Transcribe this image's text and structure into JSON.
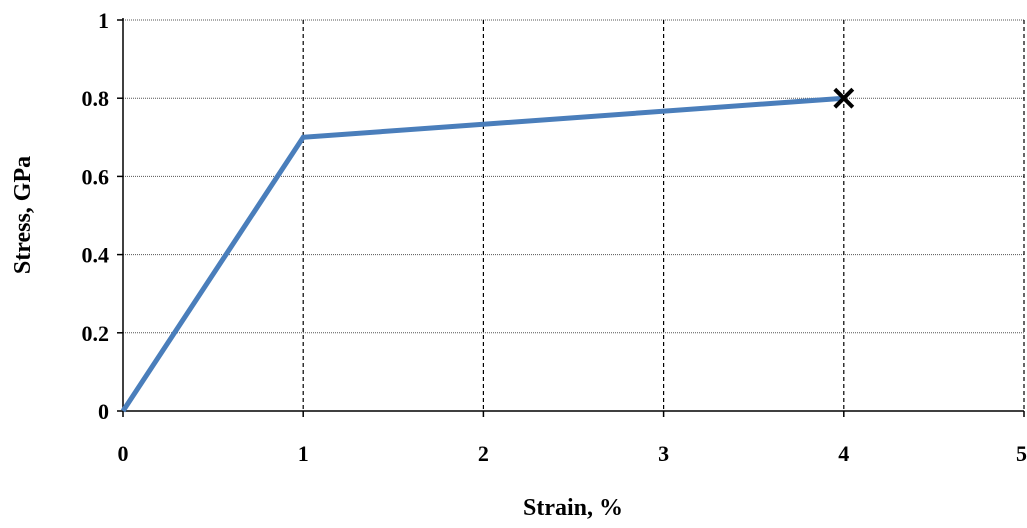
{
  "chart_data": {
    "type": "line",
    "title": "",
    "xlabel": "Strain, %",
    "ylabel": "Stress, GPa",
    "xlim": [
      0,
      5
    ],
    "ylim": [
      0,
      1
    ],
    "xticks": [
      "0",
      "1",
      "2",
      "3",
      "4",
      "5"
    ],
    "yticks": [
      "0",
      "0.2",
      "0.4",
      "0.6",
      "0.8",
      "1"
    ],
    "grid": {
      "x": "dashed",
      "y": "dotted"
    },
    "series": [
      {
        "x": [
          0,
          1,
          4
        ],
        "y": [
          0,
          0.7,
          0.8
        ],
        "color": "#4a7ebb"
      }
    ],
    "markers": [
      {
        "x": 4,
        "y": 0.8,
        "symbol": "x",
        "color": "#000000"
      }
    ]
  }
}
